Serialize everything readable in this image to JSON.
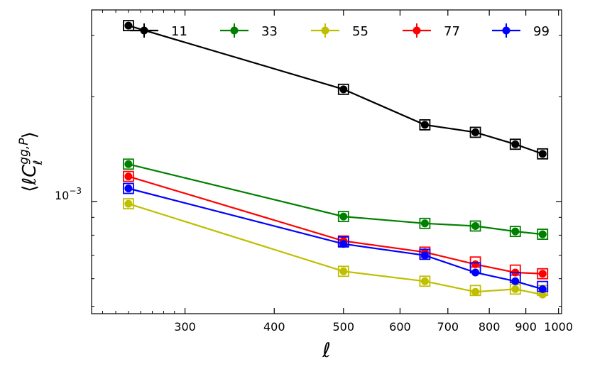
{
  "chart_data": {
    "type": "line",
    "title": "",
    "xlabel": "ℓ",
    "ylabel_parts": {
      "open": "⟨",
      "ell": "ℓ",
      "C": "C",
      "sub": "ℓ",
      "sup": "gg,P",
      "close": "⟩"
    },
    "x_scale": "log",
    "y_scale": "log",
    "xlim": [
      222,
      1010
    ],
    "ylim": [
      0.000476,
      0.00355
    ],
    "xticks": [
      300,
      400,
      500,
      600,
      700,
      800,
      900,
      1000
    ],
    "xtick_labels": [
      "300",
      "400",
      "500",
      "600",
      "700",
      "800",
      "900",
      "1000"
    ],
    "ytick_label": {
      "base": "10",
      "exp": "−3",
      "value": 0.001
    },
    "legend": {
      "placement": "top",
      "entries": [
        "11",
        "33",
        "55",
        "77",
        "99"
      ]
    },
    "x": [
      250,
      500,
      650,
      765,
      870,
      950
    ],
    "series": [
      {
        "name": "11",
        "color": "#000000",
        "values": [
          0.0032,
          0.0021,
          0.00166,
          0.00158,
          0.00146,
          0.00137
        ],
        "boxes": [
          0.0032,
          0.0021,
          0.00166,
          0.00158,
          0.00146,
          0.00137
        ]
      },
      {
        "name": "33",
        "color": "#008000",
        "values": [
          0.00128,
          0.000905,
          0.000865,
          0.00085,
          0.00082,
          0.000805
        ],
        "boxes": [
          0.00128,
          0.000905,
          0.000865,
          0.00085,
          0.00082,
          0.000805
        ]
      },
      {
        "name": "55",
        "color": "#bfbf00",
        "values": [
          0.000985,
          0.00063,
          0.00059,
          0.00055,
          0.00056,
          0.00054
        ],
        "boxes": [
          0.000985,
          0.00063,
          0.00059,
          0.000555,
          0.00056,
          0.000555
        ]
      },
      {
        "name": "77",
        "color": "#ff0000",
        "values": [
          0.00118,
          0.00077,
          0.000715,
          0.00066,
          0.000625,
          0.00062
        ],
        "boxes": [
          0.00118,
          0.00077,
          0.000715,
          0.00067,
          0.000635,
          0.00062
        ]
      },
      {
        "name": "99",
        "color": "#0000ff",
        "values": [
          0.00109,
          0.000755,
          0.0007,
          0.000625,
          0.00059,
          0.00056
        ],
        "boxes": [
          0.00109,
          0.000765,
          0.000705,
          0.000645,
          0.000605,
          0.00057
        ]
      }
    ]
  }
}
